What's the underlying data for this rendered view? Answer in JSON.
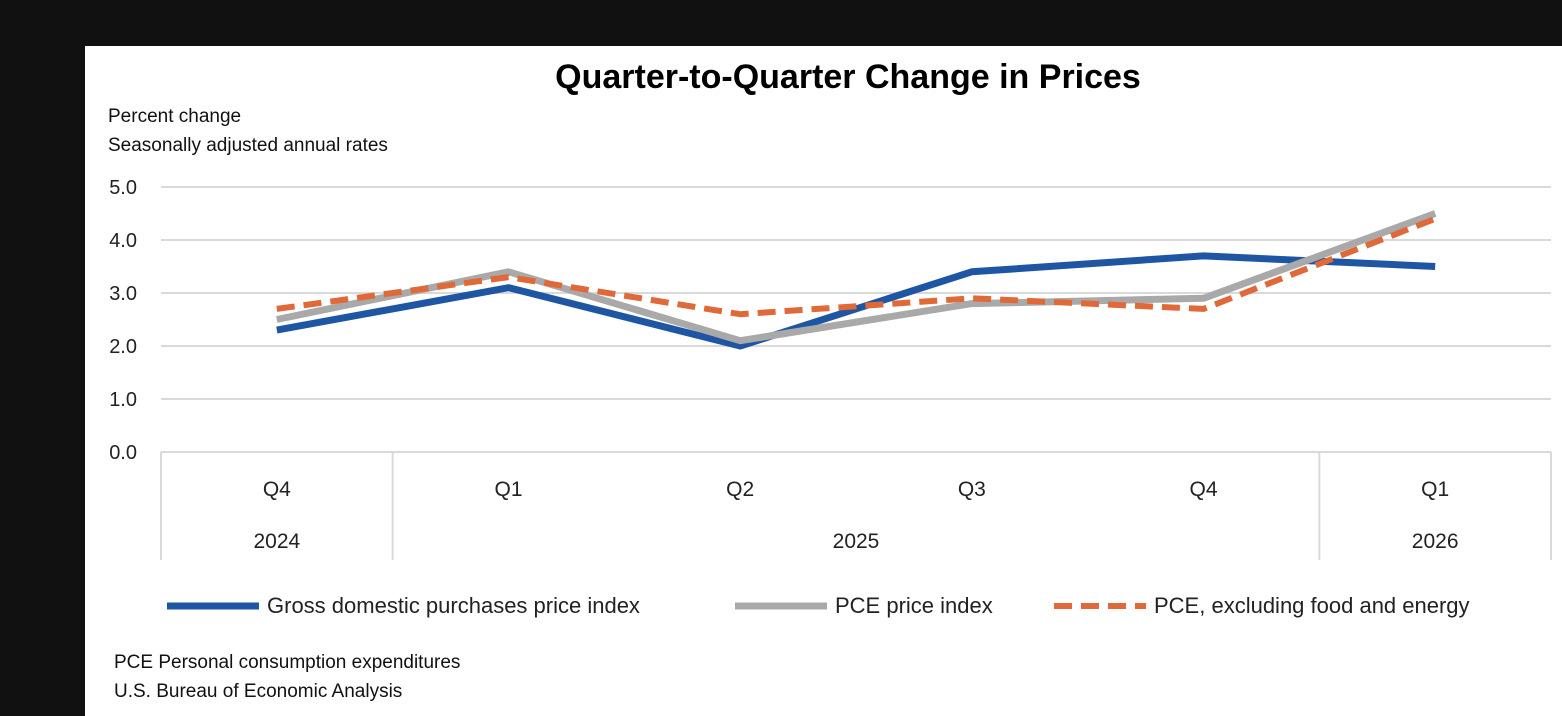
{
  "chart_data": {
    "type": "line",
    "title": "Quarter-to-Quarter Change in Prices",
    "subtitle_lines": [
      "Percent change",
      "Seasonally adjusted annual rates"
    ],
    "categories": [
      "Q4",
      "Q1",
      "Q2",
      "Q3",
      "Q4",
      "Q1"
    ],
    "year_groups": [
      {
        "label": "2024",
        "span": 1
      },
      {
        "label": "2025",
        "span": 4
      },
      {
        "label": "2026",
        "span": 1
      }
    ],
    "ylim": [
      0.0,
      5.0
    ],
    "yticks": [
      "0.0",
      "1.0",
      "2.0",
      "3.0",
      "4.0",
      "5.0"
    ],
    "grid": true,
    "legend_position": "bottom",
    "series": [
      {
        "name": "Gross domestic purchases price index",
        "color": "#1f56a4",
        "dashed": false,
        "values": [
          2.3,
          3.1,
          2.0,
          3.4,
          3.7,
          3.5
        ]
      },
      {
        "name": "PCE price index",
        "color": "#a9a9a9",
        "dashed": false,
        "values": [
          2.5,
          3.4,
          2.1,
          2.8,
          2.9,
          4.5
        ]
      },
      {
        "name": "PCE, excluding food and energy",
        "color": "#e0693a",
        "dashed": true,
        "values": [
          2.7,
          3.3,
          2.6,
          2.9,
          2.7,
          4.4
        ]
      }
    ],
    "footnotes": [
      "PCE Personal consumption expenditures",
      "U.S. Bureau of Economic Analysis"
    ]
  }
}
